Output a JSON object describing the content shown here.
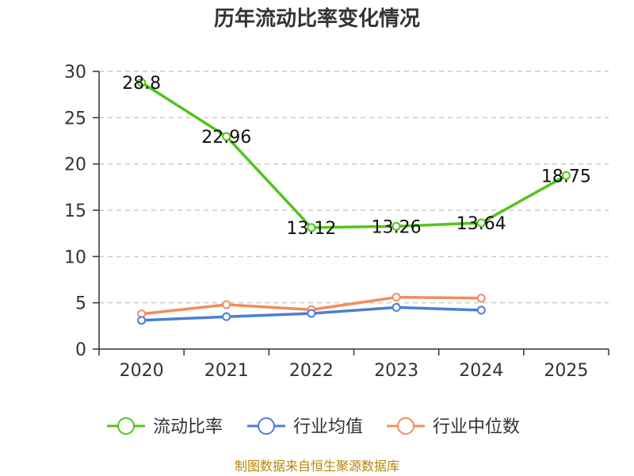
{
  "chart_data": {
    "type": "line",
    "title": "历年流动比率变化情况",
    "categories": [
      "2020",
      "2021",
      "2022",
      "2023",
      "2024",
      "2025"
    ],
    "ylim": [
      0,
      30
    ],
    "yticks": [
      0,
      5,
      10,
      15,
      20,
      25,
      30
    ],
    "grid": true,
    "legend_position": "bottom",
    "series": [
      {
        "name": "流动比率",
        "color": "#52c41a",
        "values": [
          28.8,
          22.96,
          13.12,
          13.26,
          13.64,
          18.75
        ],
        "labels": [
          "28.8",
          "22.96",
          "13.12",
          "13.26",
          "13.64",
          "18.75"
        ]
      },
      {
        "name": "行业均值",
        "color": "#4a7fd6",
        "values": [
          3.1,
          3.5,
          3.85,
          4.5,
          4.2,
          null
        ]
      },
      {
        "name": "行业中位数",
        "color": "#f28c5c",
        "values": [
          3.8,
          4.8,
          4.25,
          5.6,
          5.5,
          null
        ]
      }
    ]
  },
  "source": "制图数据来自恒生聚源数据库"
}
